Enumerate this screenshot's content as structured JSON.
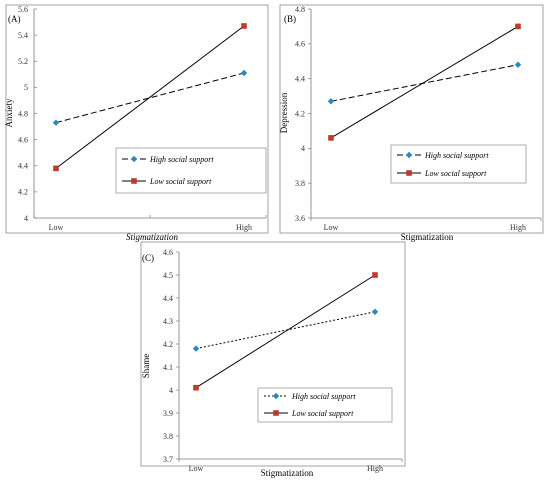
{
  "chart_data": [
    {
      "panel": "(A)",
      "type": "line",
      "categories": [
        "Low",
        "High"
      ],
      "xlabel": "Stigmatization",
      "ylabel": "Anxiety",
      "ylim": [
        4,
        5.6
      ],
      "yticks": [
        "4",
        "4.2",
        "4.4",
        "4.6",
        "4.8",
        "5",
        "5.2",
        "5.4",
        "5.6"
      ],
      "xlabel_italic": true,
      "legend_italic": true,
      "legend_placement": "bottom-right",
      "series": [
        {
          "name": "High social support",
          "values": [
            4.73,
            5.11
          ],
          "color": "#2e86c1",
          "dash": "dashed",
          "marker": "diamond"
        },
        {
          "name": "Low social support",
          "values": [
            4.38,
            5.47
          ],
          "color": "#c0392b",
          "dash": "solid",
          "marker": "square"
        }
      ]
    },
    {
      "panel": "(B)",
      "type": "line",
      "categories": [
        "Low",
        "High"
      ],
      "xlabel": "Stigmatization",
      "ylabel": "Depression",
      "ylim": [
        3.6,
        4.8
      ],
      "yticks": [
        "3.6",
        "3.8",
        "4",
        "4.2",
        "4.4",
        "4.6",
        "4.8"
      ],
      "xlabel_italic": false,
      "legend_italic": true,
      "legend_placement": "bottom-right",
      "series": [
        {
          "name": "High social support",
          "values": [
            4.27,
            4.48
          ],
          "color": "#2e86c1",
          "dash": "dashed",
          "marker": "diamond"
        },
        {
          "name": "Low social support",
          "values": [
            4.06,
            4.7
          ],
          "color": "#c0392b",
          "dash": "solid",
          "marker": "square"
        }
      ]
    },
    {
      "panel": "(C)",
      "type": "line",
      "categories": [
        "Low",
        "High"
      ],
      "xlabel": "Stigmatization",
      "ylabel": "Shame",
      "ylim": [
        3.7,
        4.6
      ],
      "yticks": [
        "3.7",
        "3.8",
        "3.9",
        "4",
        "4.1",
        "4.2",
        "4.3",
        "4.4",
        "4.5",
        "4.6"
      ],
      "xlabel_italic": false,
      "legend_italic": true,
      "legend_placement": "bottom-right",
      "series": [
        {
          "name": "High social support",
          "values": [
            4.18,
            4.34
          ],
          "color": "#2e86c1",
          "dash": "dotted",
          "marker": "diamond"
        },
        {
          "name": "Low social support",
          "values": [
            4.01,
            4.5
          ],
          "color": "#c0392b",
          "dash": "solid",
          "marker": "square"
        }
      ]
    }
  ]
}
